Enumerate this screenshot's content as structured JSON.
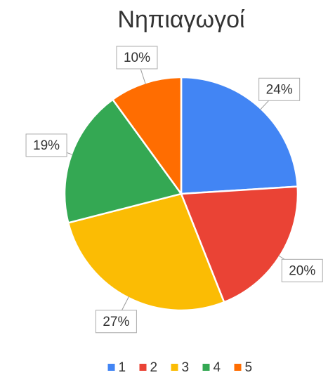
{
  "chart_data": {
    "type": "pie",
    "title": "Νηπιαγωγοί",
    "categories": [
      "1",
      "2",
      "3",
      "4",
      "5"
    ],
    "values": [
      24,
      20,
      27,
      19,
      10
    ],
    "value_labels": [
      "24%",
      "20%",
      "27%",
      "19%",
      "10%"
    ],
    "colors": [
      "#4285f4",
      "#ea4335",
      "#fbbc04",
      "#34a853",
      "#ff6d01"
    ],
    "legend": "bottom"
  }
}
